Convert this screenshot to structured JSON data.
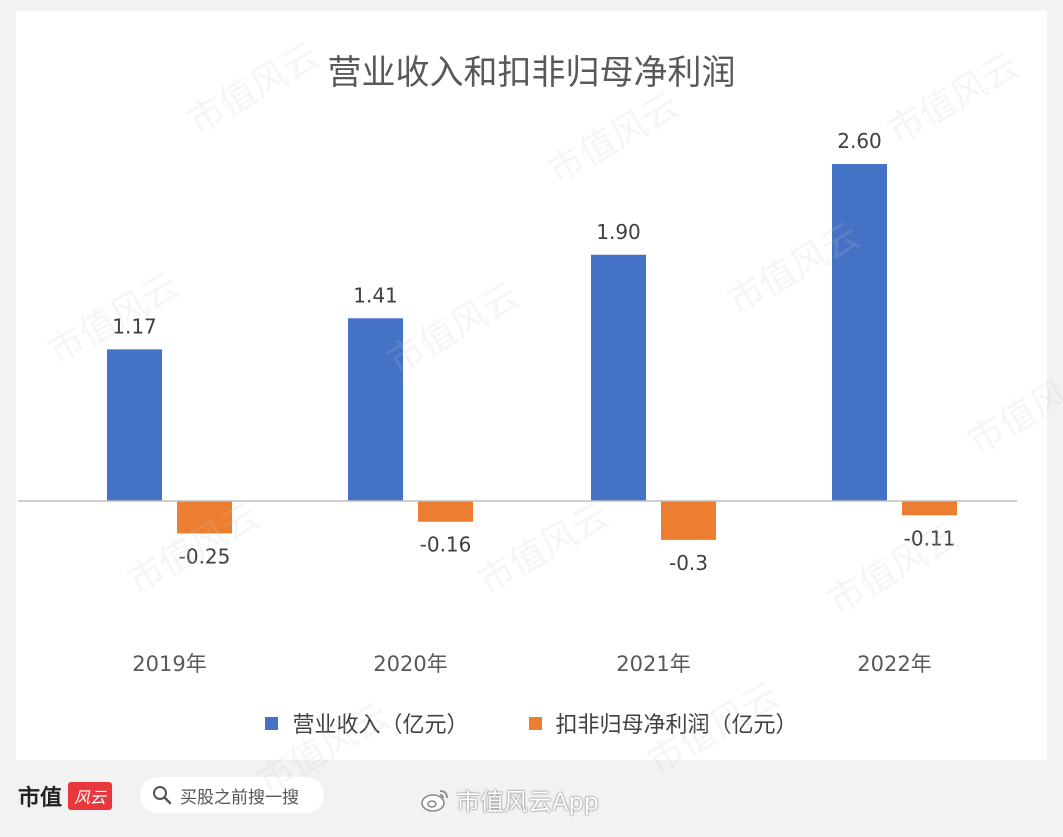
{
  "chart_data": {
    "type": "bar",
    "title": "营业收入和扣非归母净利润",
    "categories": [
      "2019年",
      "2020年",
      "2021年",
      "2022年"
    ],
    "series": [
      {
        "name": "营业收入（亿元）",
        "values": [
          1.17,
          1.41,
          1.9,
          2.6
        ],
        "labels": [
          "1.17",
          "1.41",
          "1.90",
          "2.60"
        ],
        "color": "#4472c4"
      },
      {
        "name": "扣非归母净利润（亿元）",
        "values": [
          -0.25,
          -0.16,
          -0.3,
          -0.11
        ],
        "labels": [
          "-0.25",
          "-0.16",
          "-0.3",
          "-0.11"
        ],
        "color": "#ed7d31"
      }
    ],
    "ylim": [
      -0.5,
      2.85
    ],
    "xlabel": "",
    "ylabel": "",
    "legend": "bottom",
    "grid": false
  },
  "footer": {
    "brand": "市值",
    "brand_badge": "风云",
    "search_placeholder": "买股之前搜一搜",
    "weibo_account": "市值风云App"
  },
  "watermark": "市值风云"
}
